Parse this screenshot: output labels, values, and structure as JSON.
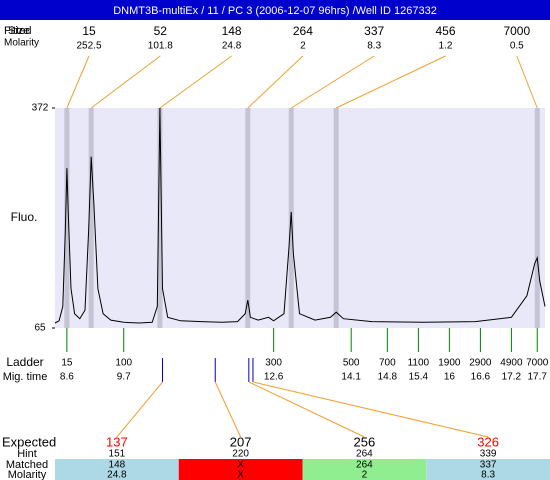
{
  "title": "DNMT3B-multiEx / 11 / PC 3 (2006-12-07 96hrs) /Well ID 1267332",
  "labels": {
    "fitted": "Fitted",
    "size": "Size",
    "molarity": "Molarity",
    "fluo": "Fluo.",
    "ladder": "Ladder",
    "mig_time": "Mig. time",
    "expected": "Expected",
    "hint": "Hint",
    "matched": "Matched",
    "molarity_row": "Molarity"
  },
  "chart_data": {
    "type": "electropherogram",
    "xlim": [
      8.37,
      17.85
    ],
    "ylim": [
      65,
      372
    ],
    "yticks": [
      65,
      372
    ],
    "peaks": {
      "size": [
        15,
        52,
        148,
        264,
        337,
        456,
        7000
      ],
      "molarity": [
        252.5,
        101.8,
        24.8,
        2,
        8.3,
        1.2,
        0.5
      ],
      "mig_time": [
        8.6,
        9.07,
        10.4,
        12.1,
        12.94,
        13.81,
        17.7
      ]
    },
    "ladder": {
      "size": [
        15,
        100,
        300,
        500,
        700,
        1100,
        1900,
        2900,
        4900,
        7000
      ],
      "mig_time": [
        8.6,
        9.7,
        12.6,
        14.1,
        14.8,
        15.4,
        16,
        16.6,
        17.2,
        17.7
      ]
    },
    "trace": {
      "color": "#000000",
      "x": [
        8.37,
        8.45,
        8.52,
        8.57,
        8.6,
        8.63,
        8.68,
        8.75,
        8.85,
        8.95,
        9.02,
        9.07,
        9.12,
        9.2,
        9.3,
        9.45,
        9.7,
        10.0,
        10.25,
        10.35,
        10.4,
        10.45,
        10.55,
        10.8,
        11.2,
        11.6,
        11.9,
        12.05,
        12.1,
        12.15,
        12.3,
        12.5,
        12.6,
        12.8,
        12.9,
        12.94,
        12.98,
        13.1,
        13.4,
        13.7,
        13.81,
        13.95,
        14.5,
        15.5,
        16.5,
        17.2,
        17.5,
        17.65,
        17.7,
        17.75,
        17.85
      ],
      "y": [
        72,
        75,
        95,
        200,
        288,
        220,
        120,
        85,
        78,
        90,
        200,
        304,
        240,
        120,
        85,
        76,
        73,
        72,
        73,
        95,
        372,
        120,
        80,
        75,
        74,
        73,
        74,
        85,
        104,
        80,
        76,
        80,
        75,
        85,
        180,
        227,
        170,
        85,
        76,
        80,
        87,
        78,
        74,
        73,
        74,
        80,
        110,
        155,
        163,
        130,
        95
      ]
    },
    "expected": {
      "values": [
        137,
        207,
        256,
        326
      ],
      "colors": [
        "#ff0000",
        "#000000",
        "#000000",
        "#ff0000"
      ],
      "mig_time": [
        10.45,
        11.47,
        12.12,
        12.2
      ],
      "hint": [
        151,
        220,
        264,
        339
      ],
      "matched": [
        148,
        "X",
        264,
        337
      ],
      "molarity": [
        24.8,
        "X",
        2,
        8.3
      ],
      "row_colors": [
        "#add8e6",
        "#ff0000",
        "#90ee90",
        "#add8e6"
      ]
    }
  }
}
